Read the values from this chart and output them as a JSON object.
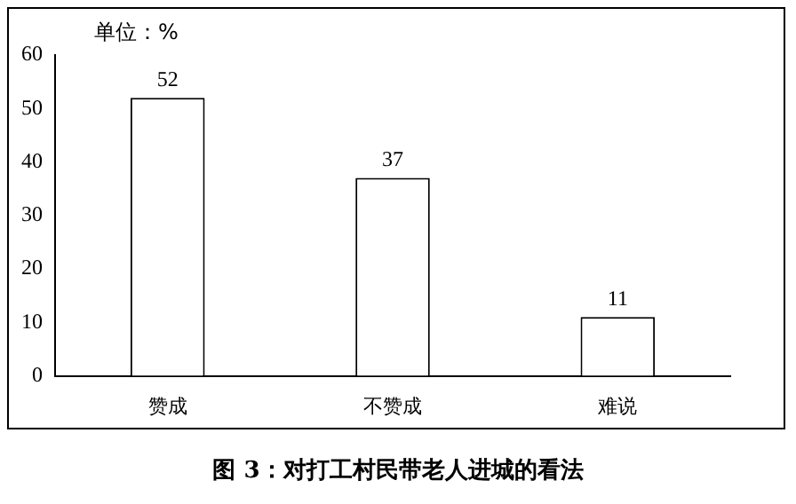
{
  "chart_data": {
    "type": "bar",
    "title": "图 3：对打工村民带老人进城的看法",
    "ylabel": "单位：%",
    "categories": [
      "赞成",
      "不赞成",
      "难说"
    ],
    "values": [
      52,
      37,
      11
    ],
    "color": "#ffffff",
    "ylim": [
      0,
      60
    ],
    "yticks": [
      0,
      10,
      20,
      30,
      40,
      50,
      60
    ],
    "grid": false,
    "data_labels": true
  }
}
